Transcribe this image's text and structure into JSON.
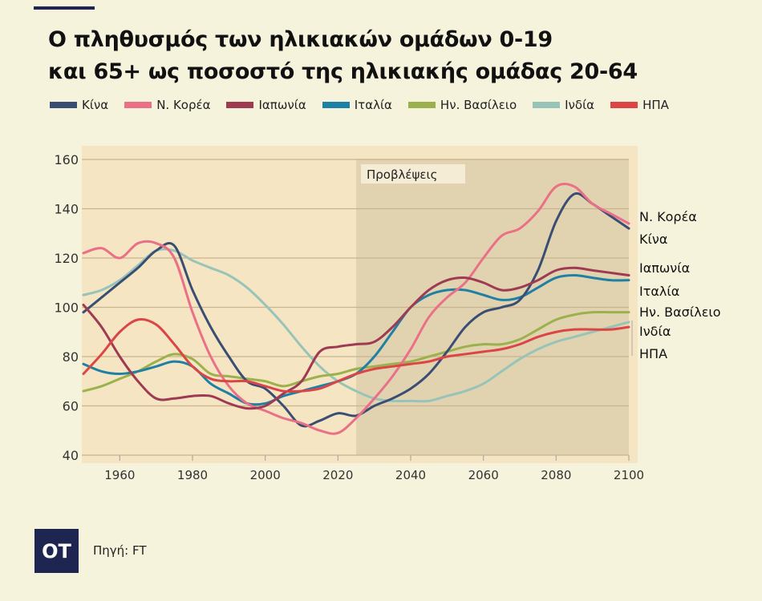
{
  "title_lines": [
    "Ο πληθυσμός των ηλικιακών ομάδων 0-19",
    "και 65+ ως ποσοστό της ηλικιακής ομάδας 20-64"
  ],
  "source": "Πηγή: FT",
  "logo": "ΟΤ",
  "chart_data": {
    "type": "line",
    "title": "Ο πληθυσμός των ηλικιακών ομάδων 0-19 και 65+ ως ποσοστό της ηλικιακής ομάδας 20-64",
    "xlim": [
      1950,
      2100
    ],
    "ylim": [
      40,
      160
    ],
    "xticks": [
      1960,
      1980,
      2000,
      2020,
      2040,
      2060,
      2080,
      2100
    ],
    "yticks": [
      40,
      60,
      80,
      100,
      120,
      140,
      160
    ],
    "grid": true,
    "forecast": {
      "label": "Προβλέψεις",
      "from": 2025,
      "to": 2100
    },
    "x": [
      1950,
      1955,
      1960,
      1965,
      1970,
      1975,
      1980,
      1985,
      1990,
      1995,
      2000,
      2005,
      2010,
      2015,
      2020,
      2025,
      2030,
      2035,
      2040,
      2045,
      2050,
      2055,
      2060,
      2065,
      2070,
      2075,
      2080,
      2085,
      2090,
      2095,
      2100
    ],
    "series": [
      {
        "name": "Κίνα",
        "end_label": "Κίνα",
        "color": "#3a4e74",
        "values": [
          98,
          104,
          110,
          116,
          123,
          125,
          107,
          92,
          80,
          70,
          67,
          60,
          52,
          54,
          57,
          56,
          60,
          63,
          67,
          73,
          82,
          92,
          98,
          100,
          103,
          115,
          135,
          146,
          142,
          137,
          132
        ]
      },
      {
        "name": "Ν. Κορέα",
        "end_label": "Ν. Κορέα",
        "color": "#ea6f87",
        "values": [
          122,
          124,
          120,
          126,
          126,
          120,
          98,
          80,
          68,
          61,
          58,
          55,
          53,
          50,
          49,
          55,
          63,
          72,
          83,
          96,
          104,
          110,
          120,
          129,
          132,
          139,
          149,
          149,
          142,
          138,
          134
        ]
      },
      {
        "name": "Ιαπωνία",
        "end_label": "Ιαπωνία",
        "color": "#9e3a52",
        "values": [
          101,
          92,
          80,
          70,
          63,
          63,
          64,
          64,
          61,
          59,
          60,
          65,
          70,
          82,
          84,
          85,
          86,
          92,
          100,
          107,
          111,
          112,
          110,
          107,
          108,
          111,
          115,
          116,
          115,
          114,
          113
        ]
      },
      {
        "name": "Ιταλία",
        "end_label": "Ιταλία",
        "color": "#1f80a6",
        "values": [
          77,
          74,
          73,
          74,
          76,
          78,
          76,
          69,
          65,
          61,
          61,
          64,
          66,
          68,
          70,
          73,
          80,
          90,
          100,
          105,
          107,
          107,
          105,
          103,
          104,
          108,
          112,
          113,
          112,
          111,
          111
        ]
      },
      {
        "name": "Ην. Βασίλειο",
        "end_label": "Ην. Βασίλειο",
        "color": "#9bb24c",
        "values": [
          66,
          68,
          71,
          74,
          78,
          81,
          79,
          73,
          72,
          71,
          70,
          68,
          70,
          72,
          73,
          75,
          76,
          77,
          78,
          80,
          82,
          84,
          85,
          85,
          87,
          91,
          95,
          97,
          98,
          98,
          98
        ]
      },
      {
        "name": "Ινδία",
        "end_label": "Ινδία",
        "color": "#98c4b8",
        "values": [
          105,
          107,
          111,
          117,
          123,
          123,
          119,
          116,
          113,
          108,
          101,
          93,
          84,
          76,
          70,
          66,
          63,
          62,
          62,
          62,
          64,
          66,
          69,
          74,
          79,
          83,
          86,
          88,
          90,
          92,
          94
        ]
      },
      {
        "name": "ΗΠΑ",
        "end_label": "ΗΠΑ",
        "color": "#db4545",
        "values": [
          73,
          81,
          90,
          95,
          93,
          85,
          76,
          71,
          70,
          70,
          68,
          66,
          66,
          67,
          70,
          73,
          75,
          76,
          77,
          78,
          80,
          81,
          82,
          83,
          85,
          88,
          90,
          91,
          91,
          91,
          92
        ]
      }
    ]
  }
}
